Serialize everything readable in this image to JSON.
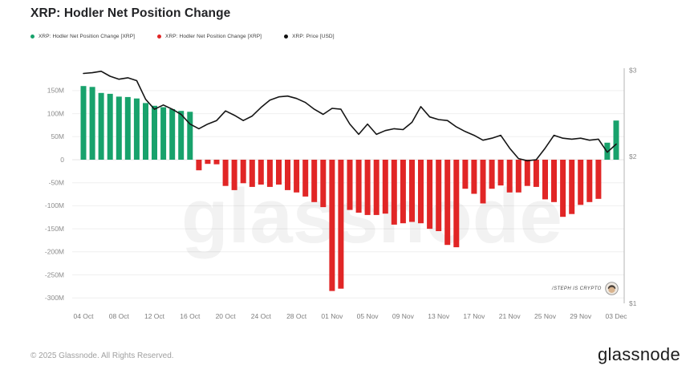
{
  "header": {
    "title": "XRP: Hodler Net Position Change"
  },
  "legend": [
    {
      "label": "XRP: Hodler Net Position Change [XRP]",
      "color": "#18a26c"
    },
    {
      "label": "XRP: Hodler Net Position Change [XRP]",
      "color": "#e12626"
    },
    {
      "label": "XRP: Price [USD]",
      "color": "#111111"
    }
  ],
  "watermark": "glassnode",
  "attribution": {
    "handle": "/STEPH IS CRYPTO"
  },
  "footer": {
    "copyright": "© 2025 Glassnode. All Rights Reserved.",
    "brand": "glassnode"
  },
  "chart_data": {
    "type": "bar",
    "title": "XRP: Hodler Net Position Change",
    "grid": true,
    "legend_position": "top-left",
    "x": [
      "04 Oct",
      "05 Oct",
      "06 Oct",
      "07 Oct",
      "08 Oct",
      "09 Oct",
      "10 Oct",
      "11 Oct",
      "12 Oct",
      "13 Oct",
      "14 Oct",
      "15 Oct",
      "16 Oct",
      "17 Oct",
      "18 Oct",
      "19 Oct",
      "20 Oct",
      "21 Oct",
      "22 Oct",
      "23 Oct",
      "24 Oct",
      "25 Oct",
      "26 Oct",
      "27 Oct",
      "28 Oct",
      "29 Oct",
      "30 Oct",
      "31 Oct",
      "01 Nov",
      "02 Nov",
      "03 Nov",
      "04 Nov",
      "05 Nov",
      "06 Nov",
      "07 Nov",
      "08 Nov",
      "09 Nov",
      "10 Nov",
      "11 Nov",
      "12 Nov",
      "13 Nov",
      "14 Nov",
      "15 Nov",
      "16 Nov",
      "17 Nov",
      "18 Nov",
      "19 Nov",
      "20 Nov",
      "21 Nov",
      "22 Nov",
      "23 Nov",
      "24 Nov",
      "25 Nov",
      "26 Nov",
      "27 Nov",
      "28 Nov",
      "29 Nov",
      "30 Nov",
      "01 Dec",
      "02 Dec",
      "03 Dec"
    ],
    "x_tick_labels": [
      "04 Oct",
      "08 Oct",
      "12 Oct",
      "16 Oct",
      "20 Oct",
      "24 Oct",
      "28 Oct",
      "01 Nov",
      "05 Nov",
      "09 Nov",
      "13 Nov",
      "17 Nov",
      "21 Nov",
      "25 Nov",
      "29 Nov",
      "03 Dec"
    ],
    "left_axis": {
      "unit": "XRP (millions)",
      "tick_values_m": [
        150,
        100,
        50,
        0,
        -50,
        -100,
        -150,
        -200,
        -250,
        -300
      ],
      "tick_labels": [
        "150M",
        "100M",
        "50M",
        "0",
        "-50M",
        "-100M",
        "-150M",
        "-200M",
        "-250M",
        "-300M"
      ]
    },
    "right_axis": {
      "scale": "log",
      "tick_values": [
        3,
        2,
        1
      ],
      "tick_labels": [
        "$3",
        "$2",
        "$1"
      ]
    },
    "series": [
      {
        "name": "XRP: Hodler Net Position Change [XRP]",
        "type": "bar",
        "axis": "left",
        "unit_scale": "millions of XRP",
        "positive_color": "#18a26c",
        "negative_color": "#e12626",
        "values": [
          160,
          158,
          145,
          143,
          137,
          136,
          133,
          123,
          117,
          114,
          110,
          106,
          104,
          -23,
          -9,
          -10,
          -57,
          -66,
          -51,
          -59,
          -54,
          -59,
          -54,
          -66,
          -71,
          -80,
          -92,
          -103,
          -285,
          -280,
          -109,
          -115,
          -120,
          -120,
          -117,
          -141,
          -138,
          -135,
          -138,
          -150,
          -155,
          -185,
          -190,
          -63,
          -74,
          -95,
          -63,
          -56,
          -71,
          -71,
          -57,
          -59,
          -86,
          -92,
          -124,
          -118,
          -98,
          -92,
          -85,
          37,
          85
        ]
      },
      {
        "name": "XRP: Price [USD]",
        "type": "line",
        "axis": "right",
        "color": "#151515",
        "values": [
          2.96,
          2.97,
          2.99,
          2.92,
          2.88,
          2.9,
          2.86,
          2.62,
          2.5,
          2.55,
          2.5,
          2.44,
          2.33,
          2.28,
          2.33,
          2.37,
          2.48,
          2.43,
          2.37,
          2.42,
          2.52,
          2.61,
          2.65,
          2.66,
          2.63,
          2.58,
          2.5,
          2.44,
          2.51,
          2.5,
          2.33,
          2.22,
          2.33,
          2.22,
          2.26,
          2.28,
          2.27,
          2.35,
          2.53,
          2.41,
          2.38,
          2.37,
          2.3,
          2.25,
          2.21,
          2.16,
          2.18,
          2.21,
          2.08,
          1.98,
          1.96,
          1.97,
          2.08,
          2.21,
          2.18,
          2.17,
          2.18,
          2.16,
          2.17,
          2.04,
          2.12
        ]
      }
    ]
  }
}
